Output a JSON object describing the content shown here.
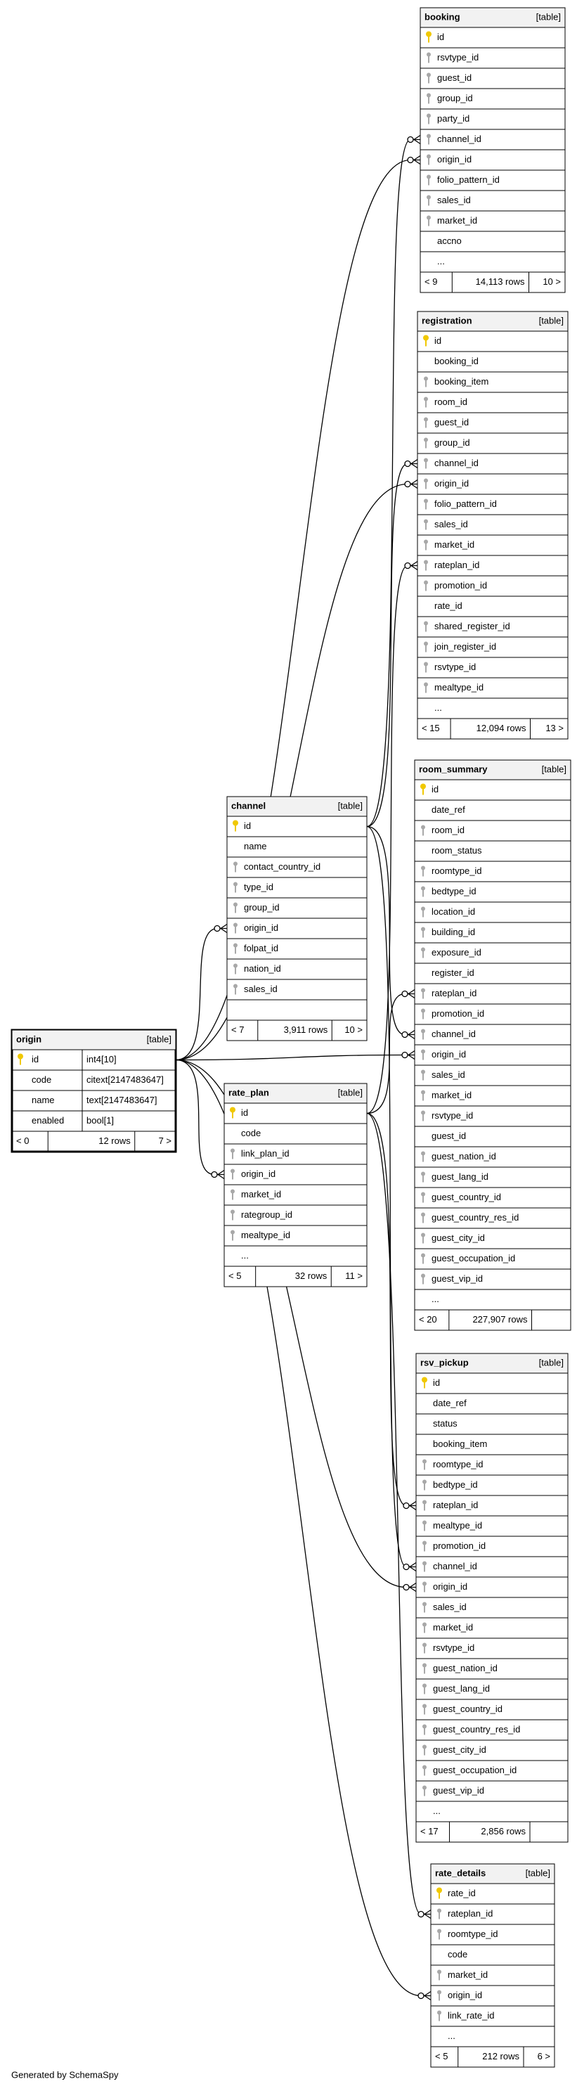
{
  "tables": [
    {
      "name": "booking",
      "kind": "[table]",
      "rows": [
        {
          "name": "id",
          "key": "pk"
        },
        {
          "name": "rsvtype_id",
          "key": "fk"
        },
        {
          "name": "guest_id",
          "key": "fk"
        },
        {
          "name": "group_id",
          "key": "fk"
        },
        {
          "name": "party_id",
          "key": "fk"
        },
        {
          "name": "channel_id",
          "key": "fk"
        },
        {
          "name": "origin_id",
          "key": "fk"
        },
        {
          "name": "folio_pattern_id",
          "key": "fk"
        },
        {
          "name": "sales_id",
          "key": "fk"
        },
        {
          "name": "market_id",
          "key": "fk"
        },
        {
          "name": "accno"
        },
        {
          "name": "..."
        }
      ],
      "footer": [
        "< 9",
        "14,113 rows",
        "10 >"
      ]
    },
    {
      "name": "registration",
      "kind": "[table]",
      "rows": [
        {
          "name": "id",
          "key": "pk"
        },
        {
          "name": "booking_id"
        },
        {
          "name": "booking_item",
          "key": "fk"
        },
        {
          "name": "room_id",
          "key": "fk"
        },
        {
          "name": "guest_id",
          "key": "fk"
        },
        {
          "name": "group_id",
          "key": "fk"
        },
        {
          "name": "channel_id",
          "key": "fk"
        },
        {
          "name": "origin_id",
          "key": "fk"
        },
        {
          "name": "folio_pattern_id",
          "key": "fk"
        },
        {
          "name": "sales_id",
          "key": "fk"
        },
        {
          "name": "market_id",
          "key": "fk"
        },
        {
          "name": "rateplan_id",
          "key": "fk"
        },
        {
          "name": "promotion_id",
          "key": "fk"
        },
        {
          "name": "rate_id"
        },
        {
          "name": "shared_register_id",
          "key": "fk"
        },
        {
          "name": "join_register_id",
          "key": "fk"
        },
        {
          "name": "rsvtype_id",
          "key": "fk"
        },
        {
          "name": "mealtype_id",
          "key": "fk"
        },
        {
          "name": "..."
        }
      ],
      "footer": [
        "< 15",
        "12,094 rows",
        "13 >"
      ]
    },
    {
      "name": "room_summary",
      "kind": "[table]",
      "rows": [
        {
          "name": "id",
          "key": "pk"
        },
        {
          "name": "date_ref"
        },
        {
          "name": "room_id",
          "key": "fk"
        },
        {
          "name": "room_status"
        },
        {
          "name": "roomtype_id",
          "key": "fk"
        },
        {
          "name": "bedtype_id",
          "key": "fk"
        },
        {
          "name": "location_id",
          "key": "fk"
        },
        {
          "name": "building_id",
          "key": "fk"
        },
        {
          "name": "exposure_id",
          "key": "fk"
        },
        {
          "name": "register_id"
        },
        {
          "name": "rateplan_id",
          "key": "fk"
        },
        {
          "name": "promotion_id",
          "key": "fk"
        },
        {
          "name": "channel_id",
          "key": "fk"
        },
        {
          "name": "origin_id",
          "key": "fk"
        },
        {
          "name": "sales_id",
          "key": "fk"
        },
        {
          "name": "market_id",
          "key": "fk"
        },
        {
          "name": "rsvtype_id",
          "key": "fk"
        },
        {
          "name": "guest_id"
        },
        {
          "name": "guest_nation_id",
          "key": "fk"
        },
        {
          "name": "guest_lang_id",
          "key": "fk"
        },
        {
          "name": "guest_country_id",
          "key": "fk"
        },
        {
          "name": "guest_country_res_id",
          "key": "fk"
        },
        {
          "name": "guest_city_id",
          "key": "fk"
        },
        {
          "name": "guest_occupation_id",
          "key": "fk"
        },
        {
          "name": "guest_vip_id",
          "key": "fk"
        },
        {
          "name": "..."
        }
      ],
      "footer": [
        "< 20",
        "227,907 rows"
      ]
    },
    {
      "name": "channel",
      "kind": "[table]",
      "rows": [
        {
          "name": "id",
          "key": "pk"
        },
        {
          "name": "name"
        },
        {
          "name": "contact_country_id",
          "key": "fk"
        },
        {
          "name": "type_id",
          "key": "fk"
        },
        {
          "name": "group_id",
          "key": "fk"
        },
        {
          "name": "origin_id",
          "key": "fk"
        },
        {
          "name": "folpat_id",
          "key": "fk"
        },
        {
          "name": "nation_id",
          "key": "fk"
        },
        {
          "name": "sales_id",
          "key": "fk"
        }
      ],
      "footer": [
        "< 7",
        "3,911 rows",
        "10 >"
      ]
    },
    {
      "name": "origin",
      "kind": "[table]",
      "rows": [
        {
          "name": "id",
          "key": "pk",
          "type": "int4[10]"
        },
        {
          "name": "code",
          "type": "citext[2147483647]"
        },
        {
          "name": "name",
          "type": "text[2147483647]"
        },
        {
          "name": "enabled",
          "type": "bool[1]"
        }
      ],
      "footer": [
        "< 0",
        "12 rows",
        "7 >"
      ]
    },
    {
      "name": "rate_plan",
      "kind": "[table]",
      "rows": [
        {
          "name": "id",
          "key": "pk"
        },
        {
          "name": "code"
        },
        {
          "name": "link_plan_id",
          "key": "fk"
        },
        {
          "name": "origin_id",
          "key": "fk"
        },
        {
          "name": "market_id",
          "key": "fk"
        },
        {
          "name": "rategroup_id",
          "key": "fk"
        },
        {
          "name": "mealtype_id",
          "key": "fk"
        },
        {
          "name": "..."
        }
      ],
      "footer": [
        "< 5",
        "32 rows",
        "11 >"
      ]
    },
    {
      "name": "rsv_pickup",
      "kind": "[table]",
      "rows": [
        {
          "name": "id",
          "key": "pk"
        },
        {
          "name": "date_ref"
        },
        {
          "name": "status"
        },
        {
          "name": "booking_item"
        },
        {
          "name": "roomtype_id",
          "key": "fk"
        },
        {
          "name": "bedtype_id",
          "key": "fk"
        },
        {
          "name": "rateplan_id",
          "key": "fk"
        },
        {
          "name": "mealtype_id",
          "key": "fk"
        },
        {
          "name": "promotion_id",
          "key": "fk"
        },
        {
          "name": "channel_id",
          "key": "fk"
        },
        {
          "name": "origin_id",
          "key": "fk"
        },
        {
          "name": "sales_id",
          "key": "fk"
        },
        {
          "name": "market_id",
          "key": "fk"
        },
        {
          "name": "rsvtype_id",
          "key": "fk"
        },
        {
          "name": "guest_nation_id",
          "key": "fk"
        },
        {
          "name": "guest_lang_id",
          "key": "fk"
        },
        {
          "name": "guest_country_id",
          "key": "fk"
        },
        {
          "name": "guest_country_res_id",
          "key": "fk"
        },
        {
          "name": "guest_city_id",
          "key": "fk"
        },
        {
          "name": "guest_occupation_id",
          "key": "fk"
        },
        {
          "name": "guest_vip_id",
          "key": "fk"
        },
        {
          "name": "..."
        }
      ],
      "footer": [
        "< 17",
        "2,856 rows"
      ]
    },
    {
      "name": "rate_details",
      "kind": "[table]",
      "rows": [
        {
          "name": "rate_id",
          "key": "pk"
        },
        {
          "name": "rateplan_id",
          "key": "fk"
        },
        {
          "name": "roomtype_id",
          "key": "fk"
        },
        {
          "name": "code"
        },
        {
          "name": "market_id",
          "key": "fk"
        },
        {
          "name": "origin_id",
          "key": "fk"
        },
        {
          "name": "link_rate_id",
          "key": "fk"
        },
        {
          "name": "..."
        }
      ],
      "footer": [
        "< 5",
        "212 rows",
        "6 >"
      ]
    }
  ],
  "generated_by": "Generated by SchemaSpy"
}
